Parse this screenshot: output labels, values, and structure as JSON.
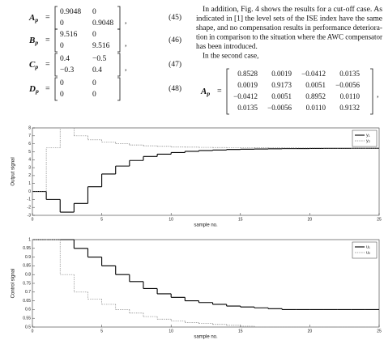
{
  "equations": [
    {
      "name": "A",
      "subscript": "p",
      "rows": [
        [
          "0.9048",
          "0"
        ],
        [
          "0",
          "0.9048"
        ]
      ],
      "punct": ",",
      "number": "(45)"
    },
    {
      "name": "B",
      "subscript": "p",
      "rows": [
        [
          "9.516",
          "0"
        ],
        [
          "0",
          "9.516"
        ]
      ],
      "punct": ",",
      "number": "(46)"
    },
    {
      "name": "C",
      "subscript": "p",
      "rows": [
        [
          "0.4",
          "−0.5"
        ],
        [
          "−0.3",
          "0.4"
        ]
      ],
      "punct": ",",
      "number": "(47)"
    },
    {
      "name": "D",
      "subscript": "p",
      "rows": [
        [
          "0",
          "0"
        ],
        [
          "0",
          "0"
        ]
      ],
      "punct": "",
      "number": "(48)"
    }
  ],
  "paragraph": {
    "lines": [
      "In addition, Fig. 4 shows the results for a cut-off case. As",
      "indicated in [1] the level sets of the ISE index have the same",
      "shape, and no compensation results in performance deteriora-",
      "tion in comparison to the situation where the AWC compensator",
      "has been introduced."
    ],
    "second": "In the second case,"
  },
  "matrix": {
    "name": "A",
    "subscript": "p",
    "rows": [
      [
        "0.8528",
        "0.0019",
        "−0.0412",
        "0.0135"
      ],
      [
        "0.0019",
        "0.9173",
        "0.0051",
        "−0.0056"
      ],
      [
        "−0.0412",
        "0.0051",
        "0.8952",
        "0.0110"
      ],
      [
        "0.0135",
        "−0.0056",
        "0.0110",
        "0.9132"
      ]
    ],
    "punct": ","
  },
  "chart_data": [
    {
      "type": "step",
      "ylabel": "Output signal",
      "xlabel": "sample no.",
      "x": [
        0,
        1,
        2,
        3,
        4,
        5,
        6,
        7,
        8,
        9,
        10,
        11,
        12,
        13,
        14,
        15,
        16,
        17,
        18,
        19,
        20,
        21,
        22,
        23,
        24
      ],
      "series": [
        {
          "name": "y₁",
          "color": "#000000",
          "dash": false,
          "values": [
            0,
            -1,
            -2.6,
            -1.5,
            0.6,
            2.2,
            3.2,
            3.9,
            4.4,
            4.7,
            4.9,
            5.05,
            5.15,
            5.22,
            5.28,
            5.32,
            5.35,
            5.37,
            5.39,
            5.4,
            5.41,
            5.42,
            5.42,
            5.43,
            5.43
          ]
        },
        {
          "name": "y₂",
          "color": "#888888",
          "dash": true,
          "values": [
            0,
            5.5,
            8,
            7,
            6.5,
            6.2,
            6,
            5.85,
            5.75,
            5.68,
            5.62,
            5.58,
            5.55,
            5.53,
            5.51,
            5.5,
            5.49,
            5.48,
            5.48,
            5.47,
            5.47,
            5.46,
            5.46,
            5.46,
            5.46
          ]
        }
      ],
      "xlim": [
        0,
        25
      ],
      "xticks": [
        0,
        5,
        10,
        15,
        20,
        25
      ],
      "ylim": [
        -3,
        8
      ],
      "yticks": [
        -3,
        -2,
        -1,
        0,
        1,
        2,
        3,
        4,
        5,
        6,
        7,
        8
      ],
      "legend": "upper right"
    },
    {
      "type": "step",
      "ylabel": "Control signal",
      "xlabel": "sample no.",
      "x": [
        0,
        1,
        2,
        3,
        4,
        5,
        6,
        7,
        8,
        9,
        10,
        11,
        12,
        13,
        14,
        15,
        16,
        17,
        18,
        19,
        20,
        21,
        22,
        23,
        24
      ],
      "series": [
        {
          "name": "u₁",
          "color": "#000000",
          "dash": false,
          "values": [
            1,
            1,
            1,
            0.95,
            0.9,
            0.85,
            0.8,
            0.76,
            0.72,
            0.69,
            0.67,
            0.65,
            0.64,
            0.63,
            0.62,
            0.615,
            0.61,
            0.605,
            0.6,
            0.6,
            0.6,
            0.6,
            0.6,
            0.6,
            0.6
          ]
        },
        {
          "name": "u₂",
          "color": "#888888",
          "dash": true,
          "values": [
            1,
            1,
            0.8,
            0.7,
            0.66,
            0.63,
            0.6,
            0.58,
            0.56,
            0.545,
            0.535,
            0.525,
            0.52,
            0.515,
            0.51,
            0.505,
            0.5,
            0.5,
            0.5,
            0.5,
            0.5,
            0.5,
            0.5,
            0.5,
            0.5
          ]
        }
      ],
      "xlim": [
        0,
        25
      ],
      "xticks": [
        0,
        5,
        10,
        15,
        20,
        25
      ],
      "ylim": [
        0.5,
        1
      ],
      "yticks": [
        0.5,
        0.55,
        0.6,
        0.65,
        0.7,
        0.75,
        0.8,
        0.85,
        0.9,
        0.95,
        1
      ],
      "legend": "upper right"
    }
  ]
}
